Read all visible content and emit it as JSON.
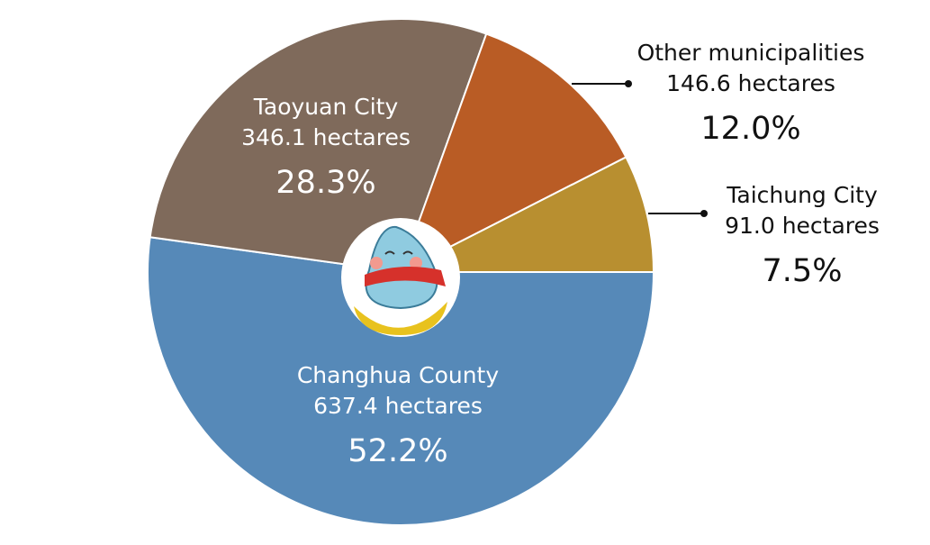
{
  "chart_data": {
    "type": "pie",
    "categories": [
      "Changhua County",
      "Taoyuan City",
      "Other municipalities",
      "Taichung City"
    ],
    "area_labels": [
      "637.4 hectares",
      "346.1 hectares",
      "146.6 hectares",
      "91.0 hectares"
    ],
    "values": [
      52.2,
      28.3,
      12.0,
      7.5
    ],
    "value_labels": [
      "52.2%",
      "28.3%",
      "12.0%",
      "7.5%"
    ],
    "colors": [
      "#5689b8",
      "#7f6a5b",
      "#b95c25",
      "#b88f30"
    ]
  }
}
